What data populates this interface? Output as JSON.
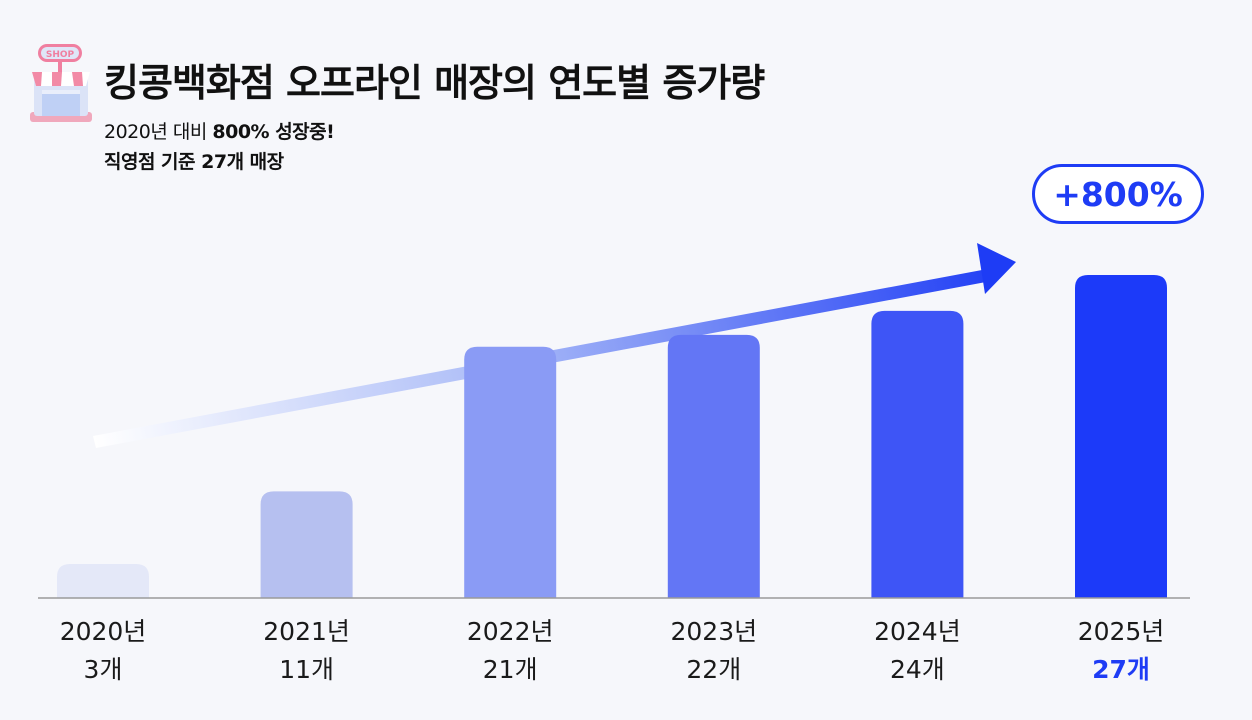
{
  "header": {
    "title": "킹콩백화점 오프라인 매장의 연도별 증가량",
    "subtitle_prefix": "2020년 대비 ",
    "subtitle_bold": "800% 성장중!",
    "subtitle_line2": "직영점 기준 27개 매장",
    "icon_text": "SHOP"
  },
  "badge": {
    "label": "+800%"
  },
  "colors": {
    "accent": "#1e3cf5",
    "bars": [
      "#e4e8f8",
      "#b6c0f0",
      "#8a9bf5",
      "#6376f5",
      "#3e55f6",
      "#1c3af9"
    ],
    "axis": "#9a9a9a",
    "background": "#f6f7fb"
  },
  "chart_data": {
    "type": "bar",
    "categories": [
      "2020년",
      "2021년",
      "2022년",
      "2023년",
      "2024년",
      "2025년"
    ],
    "values": [
      3,
      11,
      21,
      22,
      24,
      27
    ],
    "value_labels": [
      "3개",
      "11개",
      "21개",
      "22개",
      "24개",
      "27개"
    ],
    "highlight_index": 5,
    "annotation": "+800%",
    "grid": false
  }
}
